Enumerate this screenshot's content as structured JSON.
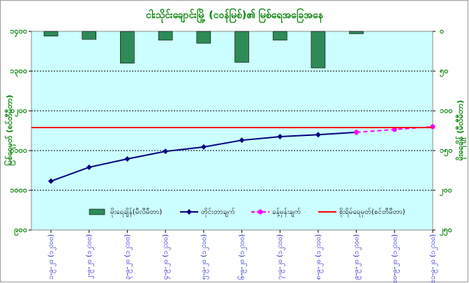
{
  "chart_data": {
    "type": "combo",
    "title": "ငါးသိုင်းချောင်းမြို့ (ငဝန်မြစ်)၏ မြစ်ရေအခြေအနေ",
    "y_label": "မြစ်ရေမှတ် (စင်တီမီတာ)",
    "y2_label": "မိုးရေချိန် (မီလီမီတာ)",
    "categories": [
      "၁-၉-၂၀ (၁၂:၀၀)",
      "၂-၉-၂၀ (၁၂:၀၀)",
      "၃-၉-၂၀ (၁၂:၀၀)",
      "၄-၉-၂၀ (၁၂:၀၀)",
      "၅-၉-၂၀ (၁၂:၀၀)",
      "၆-၉-၂၀ (၁၂:၀၀)",
      "၇-၉-၂၀ (၁၂:၀၀)",
      "၈-၉-၂၀ (၁၂:၀၀)",
      "၉-၉-၂၀ (၁၂:၀၀)",
      "၁၀-၉-၂၀ (၁၂:၀၀)",
      "၁၁-၉-၂၀ (၁၂:၀၀)"
    ],
    "ylim": [
      900,
      1400
    ],
    "yticks": [
      {
        "value": 900,
        "label": "၉၀၀"
      },
      {
        "value": 1000,
        "label": "၁၀၀၀"
      },
      {
        "value": 1100,
        "label": "၁၁၀၀"
      },
      {
        "value": 1200,
        "label": "၁၂၀၀"
      },
      {
        "value": 1300,
        "label": "၁၃၀၀"
      },
      {
        "value": 1400,
        "label": "၁၄၀၀"
      }
    ],
    "y2lim": [
      0,
      250
    ],
    "y2_inverted": true,
    "y2ticks": [
      {
        "value": 0,
        "label": "၀"
      },
      {
        "value": 50,
        "label": "၅၀"
      },
      {
        "value": 100,
        "label": "၁၀၀"
      },
      {
        "value": 150,
        "label": "၁၅၀"
      },
      {
        "value": 200,
        "label": "၂၀၀"
      },
      {
        "value": 250,
        "label": "၂၅၀"
      }
    ],
    "grid": true,
    "series": [
      {
        "name": "မိုးရေချိန်(မီလီမီတာ)",
        "type": "bar",
        "axis": "y2",
        "color": "#2e8b57",
        "values": [
          6,
          10,
          40,
          11,
          15,
          39,
          11,
          46,
          3,
          null,
          null
        ]
      },
      {
        "name": "တိုင်းတာချက်",
        "type": "line",
        "color": "#000080",
        "marker": "diamond",
        "values": [
          1023,
          1058,
          1079,
          1098,
          1109,
          1126,
          1135,
          1140,
          1146,
          null,
          null
        ]
      },
      {
        "name": "ခန့်မှန်းချက်",
        "type": "line",
        "color": "#ff00ff",
        "marker": "circle",
        "dashed": true,
        "values": [
          null,
          null,
          null,
          null,
          null,
          null,
          null,
          null,
          1146,
          1153,
          1160
        ]
      },
      {
        "name": "စိုးရိမ်ရေမှတ်(စင်တီမီတာ)",
        "type": "hline",
        "color": "#ff0000",
        "value": 1158
      }
    ]
  }
}
